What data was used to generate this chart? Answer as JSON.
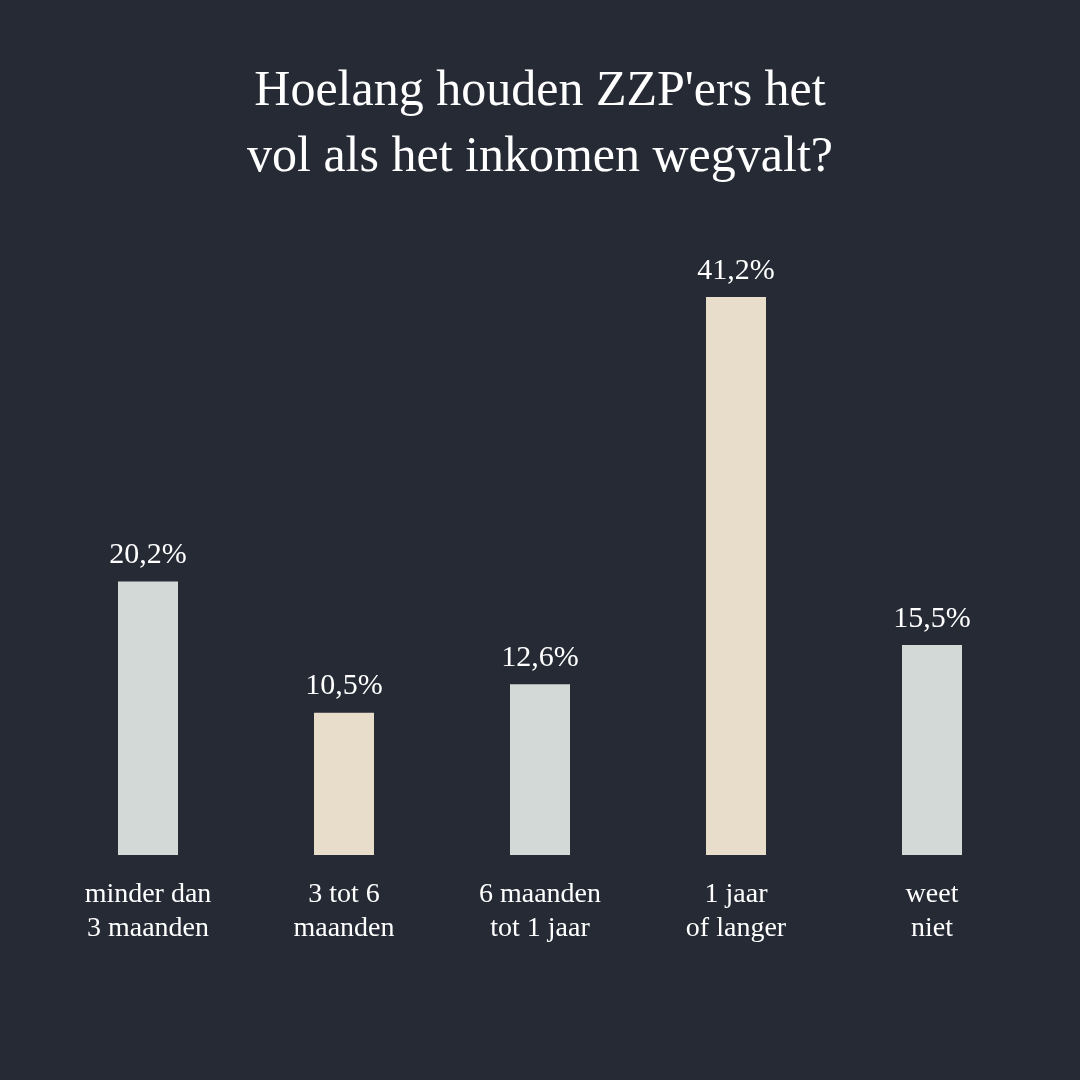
{
  "chart_data": {
    "type": "bar",
    "title": "Hoelang houden ZZP'ers het\nvol als het inkomen wegvalt?",
    "categories": [
      "minder dan\n3 maanden",
      "3 tot 6\nmaanden",
      "6 maanden\ntot 1 jaar",
      "1 jaar\nof langer",
      "weet\nniet"
    ],
    "values": [
      20.2,
      10.5,
      12.6,
      41.2,
      15.5
    ],
    "value_labels": [
      "20,2%",
      "10,5%",
      "12,6%",
      "41,2%",
      "15,5%"
    ],
    "colors": [
      "#d3d9d6",
      "#e8dccb",
      "#d3d9d6",
      "#e8dccb",
      "#d3d9d6"
    ]
  }
}
